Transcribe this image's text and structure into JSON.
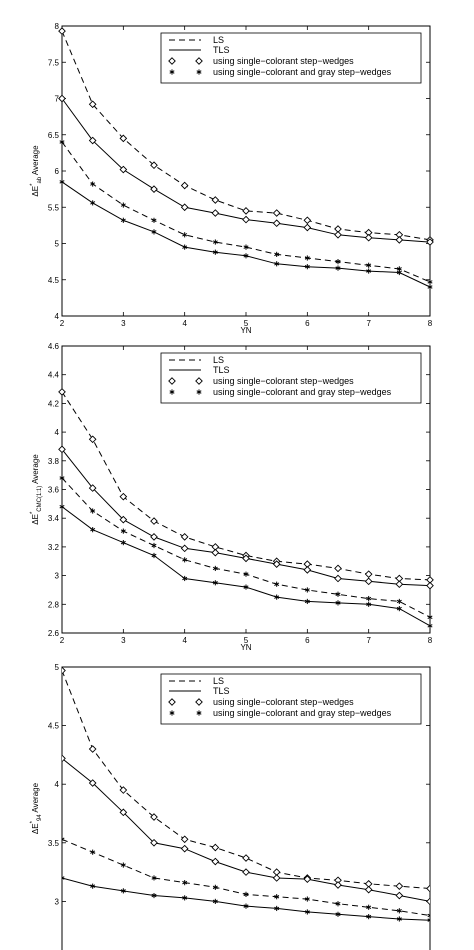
{
  "chart_data": [
    {
      "type": "line",
      "xlabel": "YN",
      "ylabel": "ΔE*ab Average",
      "ylabel_main": "ΔE",
      "ylabel_sup": "*",
      "ylabel_sub": "ab",
      "ylabel_tail": "Average",
      "xlim": [
        2,
        8
      ],
      "ylim": [
        4,
        8
      ],
      "xticks": [
        "2",
        "3",
        "4",
        "5",
        "6",
        "7",
        "8"
      ],
      "yticks": [
        "4",
        "4.5",
        "5",
        "5.5",
        "6",
        "6.5",
        "7",
        "7.5",
        "8"
      ],
      "x": [
        2,
        2.5,
        3,
        3.5,
        4,
        4.5,
        5,
        5.5,
        6,
        6.5,
        7,
        7.5,
        8
      ],
      "legend": [
        "LS",
        "TLS",
        "using single−colorant step−wedges",
        "using single−colorant and gray step−wedges"
      ],
      "legend_position": "top-right",
      "series": [
        {
          "name": "LS",
          "method": "LS",
          "marker": "diamond",
          "values": [
            7.93,
            6.92,
            6.45,
            6.08,
            5.8,
            5.6,
            5.45,
            5.42,
            5.32,
            5.2,
            5.15,
            5.12,
            5.05
          ]
        },
        {
          "name": "TLS",
          "method": "TLS",
          "marker": "diamond",
          "values": [
            7.0,
            6.42,
            6.02,
            5.75,
            5.5,
            5.42,
            5.33,
            5.28,
            5.22,
            5.12,
            5.08,
            5.05,
            5.02
          ]
        },
        {
          "name": "LS",
          "method": "LS",
          "marker": "star",
          "values": [
            6.4,
            5.82,
            5.53,
            5.32,
            5.12,
            5.02,
            4.95,
            4.85,
            4.8,
            4.75,
            4.7,
            4.65,
            4.47
          ]
        },
        {
          "name": "TLS",
          "method": "TLS",
          "marker": "star",
          "values": [
            5.85,
            5.56,
            5.32,
            5.16,
            4.95,
            4.88,
            4.83,
            4.72,
            4.68,
            4.66,
            4.62,
            4.6,
            4.4
          ]
        }
      ]
    },
    {
      "type": "line",
      "xlabel": "YN",
      "ylabel": "ΔE*CMC(1:1) Average",
      "ylabel_main": "ΔE",
      "ylabel_sup": "*",
      "ylabel_sub": "CMC(1:1)",
      "ylabel_tail": "Average",
      "xlim": [
        2,
        8
      ],
      "ylim": [
        2.6,
        4.6
      ],
      "xticks": [
        "2",
        "3",
        "4",
        "5",
        "6",
        "7",
        "8"
      ],
      "yticks": [
        "2.6",
        "2.8",
        "3",
        "3.2",
        "3.4",
        "3.6",
        "3.8",
        "4",
        "4.2",
        "4.4",
        "4.6"
      ],
      "x": [
        2,
        2.5,
        3,
        3.5,
        4,
        4.5,
        5,
        5.5,
        6,
        6.5,
        7,
        7.5,
        8
      ],
      "legend": [
        "LS",
        "TLS",
        "using single−colorant step−wedges",
        "using single−colorant and gray step−wedges"
      ],
      "legend_position": "top-right",
      "series": [
        {
          "name": "LS",
          "method": "LS",
          "marker": "diamond",
          "values": [
            4.28,
            3.95,
            3.55,
            3.38,
            3.27,
            3.2,
            3.14,
            3.1,
            3.08,
            3.05,
            3.01,
            2.98,
            2.97
          ]
        },
        {
          "name": "TLS",
          "method": "TLS",
          "marker": "diamond",
          "values": [
            3.88,
            3.61,
            3.39,
            3.27,
            3.19,
            3.16,
            3.12,
            3.08,
            3.04,
            2.98,
            2.96,
            2.94,
            2.93
          ]
        },
        {
          "name": "LS",
          "method": "LS",
          "marker": "star",
          "values": [
            3.68,
            3.45,
            3.31,
            3.21,
            3.11,
            3.05,
            3.01,
            2.94,
            2.9,
            2.87,
            2.84,
            2.82,
            2.71
          ]
        },
        {
          "name": "TLS",
          "method": "TLS",
          "marker": "star",
          "values": [
            3.48,
            3.32,
            3.23,
            3.14,
            2.98,
            2.95,
            2.92,
            2.85,
            2.82,
            2.81,
            2.8,
            2.77,
            2.65
          ]
        }
      ]
    },
    {
      "type": "line",
      "xlabel": "",
      "ylabel": "ΔE*94 Average",
      "ylabel_main": "ΔE",
      "ylabel_sup": "*",
      "ylabel_sub": "94",
      "ylabel_tail": "Average",
      "xlim": [
        2,
        8
      ],
      "ylim": [
        2.5,
        5
      ],
      "xticks": [],
      "yticks": [
        "3",
        "3.5",
        "4",
        "4.5",
        "5"
      ],
      "x": [
        2,
        2.5,
        3,
        3.5,
        4,
        4.5,
        5,
        5.5,
        6,
        6.5,
        7,
        7.5,
        8
      ],
      "legend": [
        "LS",
        "TLS",
        "using single−colorant step−wedges",
        "using single−colorant and gray step−wedges"
      ],
      "legend_position": "top-right",
      "series": [
        {
          "name": "LS",
          "method": "LS",
          "marker": "diamond",
          "values": [
            4.97,
            4.3,
            3.95,
            3.72,
            3.53,
            3.46,
            3.37,
            3.25,
            3.2,
            3.18,
            3.15,
            3.13,
            3.11
          ]
        },
        {
          "name": "TLS",
          "method": "TLS",
          "marker": "diamond",
          "values": [
            4.22,
            4.01,
            3.76,
            3.5,
            3.45,
            3.34,
            3.25,
            3.2,
            3.19,
            3.14,
            3.1,
            3.05,
            3.0
          ]
        },
        {
          "name": "LS",
          "method": "LS",
          "marker": "star",
          "values": [
            3.53,
            3.42,
            3.31,
            3.2,
            3.16,
            3.12,
            3.06,
            3.04,
            3.02,
            2.98,
            2.95,
            2.92,
            2.88
          ]
        },
        {
          "name": "TLS",
          "method": "TLS",
          "marker": "star",
          "values": [
            3.2,
            3.13,
            3.09,
            3.05,
            3.03,
            3.0,
            2.96,
            2.94,
            2.91,
            2.89,
            2.87,
            2.85,
            2.84
          ]
        }
      ]
    }
  ]
}
